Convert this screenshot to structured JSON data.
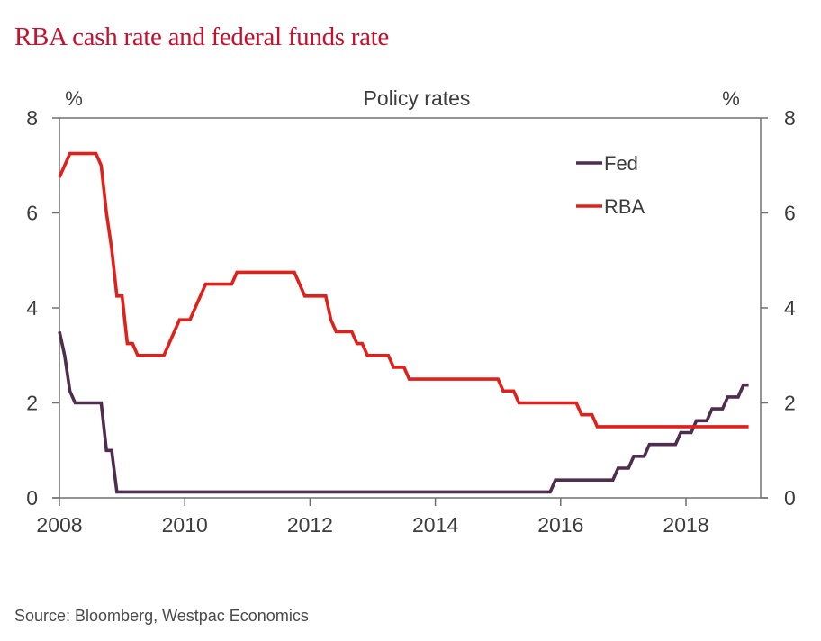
{
  "title": "RBA cash rate and federal funds rate",
  "source": "Source: Bloomberg, Westpac Economics",
  "chart_data": {
    "type": "line",
    "title": "RBA cash rate and federal funds rate",
    "subtitle": "Policy rates",
    "ylabel_left": "%",
    "ylabel_right": "%",
    "xlabel": "",
    "xlim": [
      2008,
      2019.1
    ],
    "ylim": [
      0,
      8
    ],
    "x_ticks": [
      2008,
      2010,
      2012,
      2014,
      2016,
      2018
    ],
    "x_tick_labels": [
      "2008",
      "2010",
      "2012",
      "2014",
      "2016",
      "2018"
    ],
    "y_ticks": [
      0,
      2,
      4,
      6,
      8
    ],
    "y_tick_labels": [
      "0",
      "2",
      "4",
      "6",
      "8"
    ],
    "grid": false,
    "legend_position": "top-right",
    "x_start": 2008,
    "x_step": "monthly",
    "x_start_label": "Jan 2008",
    "x_end_label": "Jan 2019",
    "series": [
      {
        "name": "Fed",
        "color": "#4f2d4f",
        "values": [
          3.5,
          3.0,
          2.25,
          2.0,
          2.0,
          2.0,
          2.0,
          2.0,
          2.0,
          1.0,
          1.0,
          0.125,
          0.125,
          0.125,
          0.125,
          0.125,
          0.125,
          0.125,
          0.125,
          0.125,
          0.125,
          0.125,
          0.125,
          0.125,
          0.125,
          0.125,
          0.125,
          0.125,
          0.125,
          0.125,
          0.125,
          0.125,
          0.125,
          0.125,
          0.125,
          0.125,
          0.125,
          0.125,
          0.125,
          0.125,
          0.125,
          0.125,
          0.125,
          0.125,
          0.125,
          0.125,
          0.125,
          0.125,
          0.125,
          0.125,
          0.125,
          0.125,
          0.125,
          0.125,
          0.125,
          0.125,
          0.125,
          0.125,
          0.125,
          0.125,
          0.125,
          0.125,
          0.125,
          0.125,
          0.125,
          0.125,
          0.125,
          0.125,
          0.125,
          0.125,
          0.125,
          0.125,
          0.125,
          0.125,
          0.125,
          0.125,
          0.125,
          0.125,
          0.125,
          0.125,
          0.125,
          0.125,
          0.125,
          0.125,
          0.125,
          0.125,
          0.125,
          0.125,
          0.125,
          0.125,
          0.125,
          0.125,
          0.125,
          0.125,
          0.125,
          0.375,
          0.375,
          0.375,
          0.375,
          0.375,
          0.375,
          0.375,
          0.375,
          0.375,
          0.375,
          0.375,
          0.375,
          0.625,
          0.625,
          0.625,
          0.875,
          0.875,
          0.875,
          1.125,
          1.125,
          1.125,
          1.125,
          1.125,
          1.125,
          1.375,
          1.375,
          1.375,
          1.625,
          1.625,
          1.625,
          1.875,
          1.875,
          1.875,
          2.125,
          2.125,
          2.125,
          2.375,
          2.375
        ]
      },
      {
        "name": "RBA",
        "color": "#e0201b",
        "values": [
          6.75,
          7.0,
          7.25,
          7.25,
          7.25,
          7.25,
          7.25,
          7.25,
          7.0,
          6.0,
          5.25,
          4.25,
          4.25,
          3.25,
          3.25,
          3.0,
          3.0,
          3.0,
          3.0,
          3.0,
          3.0,
          3.25,
          3.5,
          3.75,
          3.75,
          3.75,
          4.0,
          4.25,
          4.5,
          4.5,
          4.5,
          4.5,
          4.5,
          4.5,
          4.75,
          4.75,
          4.75,
          4.75,
          4.75,
          4.75,
          4.75,
          4.75,
          4.75,
          4.75,
          4.75,
          4.75,
          4.5,
          4.25,
          4.25,
          4.25,
          4.25,
          4.25,
          3.75,
          3.5,
          3.5,
          3.5,
          3.5,
          3.25,
          3.25,
          3.0,
          3.0,
          3.0,
          3.0,
          3.0,
          2.75,
          2.75,
          2.75,
          2.5,
          2.5,
          2.5,
          2.5,
          2.5,
          2.5,
          2.5,
          2.5,
          2.5,
          2.5,
          2.5,
          2.5,
          2.5,
          2.5,
          2.5,
          2.5,
          2.5,
          2.5,
          2.25,
          2.25,
          2.25,
          2.0,
          2.0,
          2.0,
          2.0,
          2.0,
          2.0,
          2.0,
          2.0,
          2.0,
          2.0,
          2.0,
          2.0,
          1.75,
          1.75,
          1.75,
          1.5,
          1.5,
          1.5,
          1.5,
          1.5,
          1.5,
          1.5,
          1.5,
          1.5,
          1.5,
          1.5,
          1.5,
          1.5,
          1.5,
          1.5,
          1.5,
          1.5,
          1.5,
          1.5,
          1.5,
          1.5,
          1.5,
          1.5,
          1.5,
          1.5,
          1.5,
          1.5,
          1.5,
          1.5,
          1.5
        ]
      }
    ]
  }
}
